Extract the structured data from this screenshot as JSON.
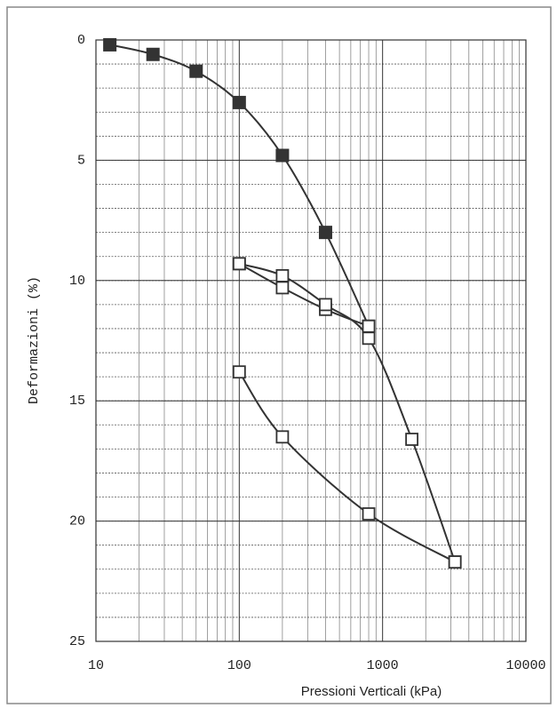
{
  "chart_data": {
    "type": "line",
    "xlabel": "Pressioni Verticali (kPa)",
    "ylabel": "Deformazioni (%)",
    "xscale": "log",
    "yinverted": true,
    "grid": true,
    "xlim": [
      10,
      10000
    ],
    "xticks": [
      10,
      100,
      1000,
      10000
    ],
    "ylim": [
      0,
      25
    ],
    "yticks": [
      0,
      5,
      10,
      15,
      20,
      25
    ],
    "series": [
      {
        "marker": "filled",
        "color": "#333333",
        "x": [
          12.5,
          25,
          50,
          100,
          200,
          400,
          800
        ],
        "values": [
          0.2,
          0.6,
          1.3,
          2.6,
          4.8,
          8.0,
          11.9
        ]
      },
      {
        "marker": "open",
        "color": "#333333",
        "x": [
          800,
          400,
          200,
          100
        ],
        "values": [
          11.9,
          11.2,
          10.3,
          9.3
        ]
      },
      {
        "marker": "open",
        "color": "#333333",
        "x": [
          100,
          200,
          400,
          800,
          1600,
          3200
        ],
        "values": [
          9.3,
          9.8,
          11.0,
          12.4,
          16.6,
          21.7
        ]
      },
      {
        "marker": "open",
        "color": "#333333",
        "x": [
          3200,
          800,
          200,
          100
        ],
        "values": [
          21.7,
          19.7,
          16.5,
          13.8
        ]
      }
    ]
  }
}
